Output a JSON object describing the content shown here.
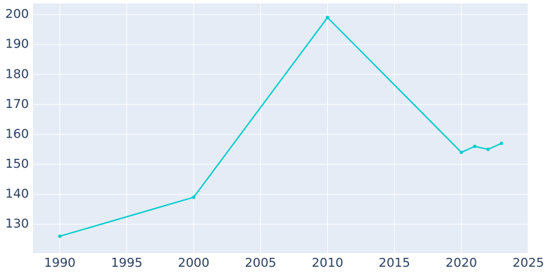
{
  "chart_data": {
    "type": "line",
    "x": [
      1990,
      2000,
      2010,
      2020,
      2021,
      2022,
      2023
    ],
    "series": [
      {
        "color": "#00cccc",
        "values": [
          126,
          139,
          199,
          154,
          156,
          155,
          157
        ]
      }
    ],
    "xlim": [
      1988,
      2025
    ],
    "xticks": [
      1990,
      1995,
      2000,
      2005,
      2010,
      2015,
      2020,
      2025
    ],
    "ylim": [
      120.4,
      203.7
    ],
    "yticks": [
      130,
      140,
      150,
      160,
      170,
      180,
      190,
      200
    ],
    "grid": true
  }
}
